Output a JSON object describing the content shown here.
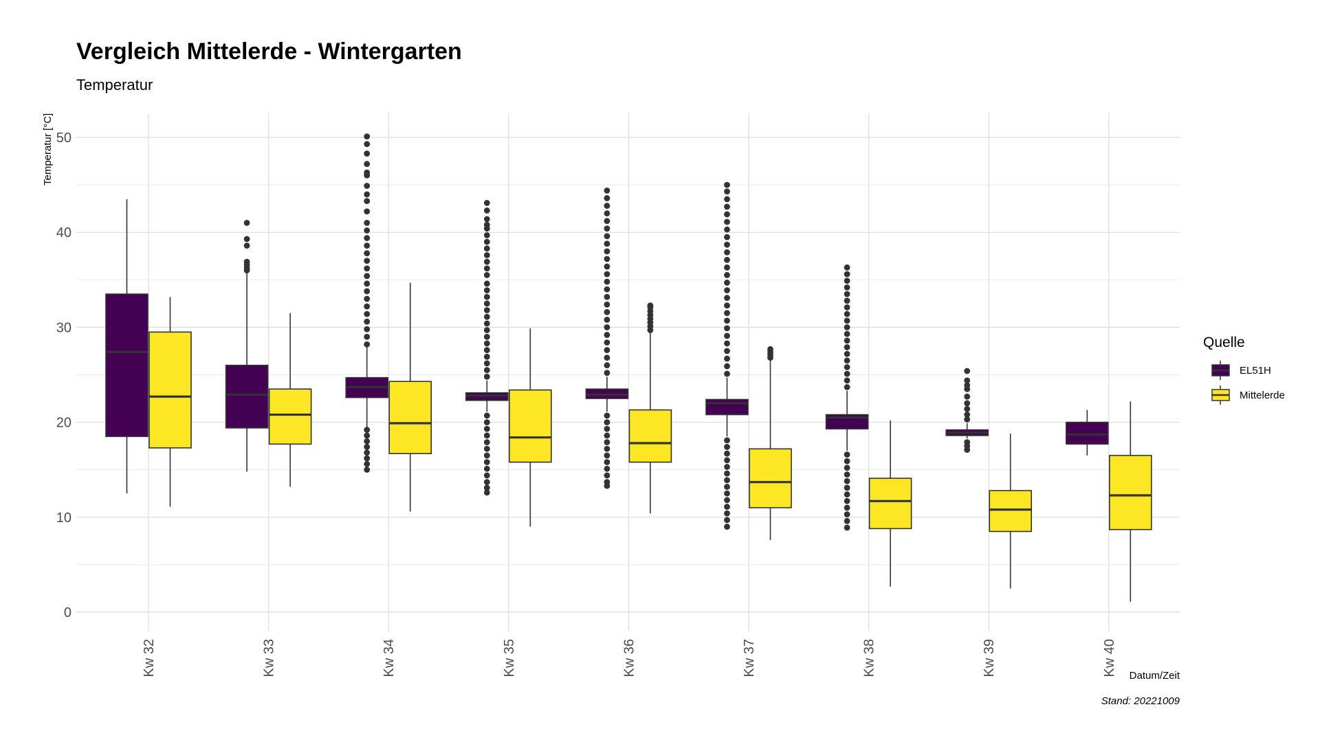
{
  "chart_data": {
    "type": "boxplot",
    "title": "Vergleich Mittelerde - Wintergarten",
    "subtitle": "Temperatur",
    "xlabel": "Datum/Zeit",
    "ylabel": "Temperatur [°C]",
    "caption": "Stand: 20221009",
    "ylim": [
      0,
      51
    ],
    "yticks": [
      0,
      10,
      20,
      30,
      40,
      50
    ],
    "grid": true,
    "legend": {
      "title": "Quelle",
      "placement": "right"
    },
    "categories": [
      "Kw 32",
      "Kw 33",
      "Kw 34",
      "Kw 35",
      "Kw 36",
      "Kw 37",
      "Kw 38",
      "Kw 39",
      "Kw 40"
    ],
    "series": [
      {
        "name": "EL51H",
        "color": "#440154",
        "boxes": [
          {
            "lower_whisker": 12.5,
            "q1": 18.5,
            "median": 27.4,
            "q3": 33.5,
            "upper_whisker": 43.5,
            "outliers_high": [],
            "outliers_low": []
          },
          {
            "lower_whisker": 14.8,
            "q1": 19.4,
            "median": 22.9,
            "q3": 26.0,
            "upper_whisker": 35.8,
            "outliers_high": [
              36.0,
              36.3,
              36.6,
              36.9,
              38.6,
              39.3,
              41.0
            ],
            "outliers_low": []
          },
          {
            "lower_whisker": 19.5,
            "q1": 22.6,
            "median": 23.7,
            "q3": 24.7,
            "upper_whisker": 27.9,
            "outliers_high": [
              28.2,
              29.0,
              29.8,
              30.6,
              31.4,
              32.2,
              33.0,
              33.8,
              34.6,
              35.4,
              36.2,
              37.0,
              37.8,
              38.6,
              39.4,
              40.2,
              41.0,
              42.2,
              43.3,
              44.0,
              44.9,
              46.0,
              46.3,
              47.2,
              48.3,
              49.3,
              50.1
            ],
            "outliers_low": [
              19.2,
              18.6,
              18.0,
              17.4,
              16.8,
              16.2,
              15.6,
              15.0
            ]
          },
          {
            "lower_whisker": 21.1,
            "q1": 22.3,
            "median": 22.8,
            "q3": 23.1,
            "upper_whisker": 24.4,
            "outliers_high": [
              24.8,
              25.5,
              26.2,
              26.9,
              27.6,
              28.3,
              29.0,
              29.7,
              30.4,
              31.1,
              31.8,
              32.5,
              33.2,
              33.9,
              34.6,
              35.5,
              36.2,
              36.9,
              37.6,
              38.3,
              39.0,
              39.7,
              40.4,
              40.8,
              41.4,
              42.3,
              43.1
            ],
            "outliers_low": [
              20.7,
              20.0,
              19.3,
              18.6,
              17.9,
              17.2,
              16.5,
              15.8,
              15.1,
              14.4,
              13.7,
              13.1,
              12.6
            ]
          },
          {
            "lower_whisker": 21.1,
            "q1": 22.5,
            "median": 22.9,
            "q3": 23.5,
            "upper_whisker": 24.8,
            "outliers_high": [
              25.2,
              26.0,
              26.8,
              27.6,
              28.4,
              29.2,
              30.0,
              30.8,
              31.6,
              32.4,
              33.2,
              34.0,
              34.8,
              35.6,
              36.4,
              37.2,
              38.0,
              38.8,
              39.6,
              40.4,
              41.2,
              42.0,
              42.8,
              43.6,
              44.4
            ],
            "outliers_low": [
              20.7,
              20.0,
              19.3,
              18.6,
              17.9,
              17.2,
              16.5,
              15.8,
              15.1,
              14.4,
              13.7,
              13.3
            ]
          },
          {
            "lower_whisker": 18.5,
            "q1": 20.8,
            "median": 22.0,
            "q3": 22.4,
            "upper_whisker": 24.7,
            "outliers_high": [
              25.1,
              25.9,
              26.7,
              27.5,
              28.3,
              29.1,
              29.9,
              30.7,
              31.5,
              32.3,
              33.1,
              33.9,
              34.7,
              35.5,
              36.3,
              37.1,
              37.9,
              38.7,
              39.5,
              40.3,
              41.1,
              41.9,
              42.7,
              43.5,
              44.3,
              45.0
            ],
            "outliers_low": [
              18.1,
              17.4,
              16.7,
              16.0,
              15.3,
              14.6,
              13.9,
              13.2,
              12.5,
              11.8,
              11.1,
              10.4,
              9.7,
              9.0
            ]
          },
          {
            "lower_whisker": 17.0,
            "q1": 19.3,
            "median": 20.5,
            "q3": 20.8,
            "upper_whisker": 23.3,
            "outliers_high": [
              23.7,
              24.4,
              25.1,
              25.8,
              26.5,
              27.2,
              27.9,
              28.6,
              29.3,
              30.0,
              30.7,
              31.4,
              32.1,
              32.8,
              33.5,
              34.2,
              34.9,
              35.6,
              36.3
            ],
            "outliers_low": [
              16.6,
              15.9,
              15.2,
              14.5,
              13.8,
              13.1,
              12.4,
              11.7,
              11.0,
              10.3,
              9.6,
              8.9
            ]
          },
          {
            "lower_whisker": 18.3,
            "q1": 18.6,
            "median": 18.9,
            "q3": 19.2,
            "upper_whisker": 19.9,
            "outliers_high": [
              20.3,
              20.8,
              21.4,
              22.0,
              22.7,
              23.5,
              23.9,
              24.4,
              25.4
            ],
            "outliers_low": [
              17.9,
              17.5,
              17.1
            ]
          },
          {
            "lower_whisker": 16.5,
            "q1": 17.7,
            "median": 18.7,
            "q3": 20.0,
            "upper_whisker": 21.3,
            "outliers_high": [],
            "outliers_low": []
          }
        ]
      },
      {
        "name": "Mittelerde",
        "color": "#fde725",
        "boxes": [
          {
            "lower_whisker": 11.1,
            "q1": 17.3,
            "median": 22.7,
            "q3": 29.5,
            "upper_whisker": 33.2,
            "outliers_high": [],
            "outliers_low": []
          },
          {
            "lower_whisker": 13.2,
            "q1": 17.7,
            "median": 20.8,
            "q3": 23.5,
            "upper_whisker": 31.5,
            "outliers_high": [],
            "outliers_low": []
          },
          {
            "lower_whisker": 10.6,
            "q1": 16.7,
            "median": 19.9,
            "q3": 24.3,
            "upper_whisker": 34.7,
            "outliers_high": [],
            "outliers_low": []
          },
          {
            "lower_whisker": 9.0,
            "q1": 15.8,
            "median": 18.4,
            "q3": 23.4,
            "upper_whisker": 29.9,
            "outliers_high": [],
            "outliers_low": []
          },
          {
            "lower_whisker": 10.4,
            "q1": 15.8,
            "median": 17.8,
            "q3": 21.3,
            "upper_whisker": 29.4,
            "outliers_high": [
              29.7,
              30.1,
              30.5,
              30.9,
              31.3,
              31.7,
              32.1,
              32.3
            ],
            "outliers_low": []
          },
          {
            "lower_whisker": 7.6,
            "q1": 11.0,
            "median": 13.7,
            "q3": 17.2,
            "upper_whisker": 26.5,
            "outliers_high": [
              26.8,
              27.1,
              27.4,
              27.7
            ],
            "outliers_low": []
          },
          {
            "lower_whisker": 2.7,
            "q1": 8.8,
            "median": 11.7,
            "q3": 14.1,
            "upper_whisker": 20.2,
            "outliers_high": [],
            "outliers_low": []
          },
          {
            "lower_whisker": 2.5,
            "q1": 8.5,
            "median": 10.8,
            "q3": 12.8,
            "upper_whisker": 18.8,
            "outliers_high": [],
            "outliers_low": []
          },
          {
            "lower_whisker": 1.1,
            "q1": 8.7,
            "median": 12.3,
            "q3": 16.5,
            "upper_whisker": 22.2,
            "outliers_high": [],
            "outliers_low": []
          }
        ]
      }
    ]
  }
}
